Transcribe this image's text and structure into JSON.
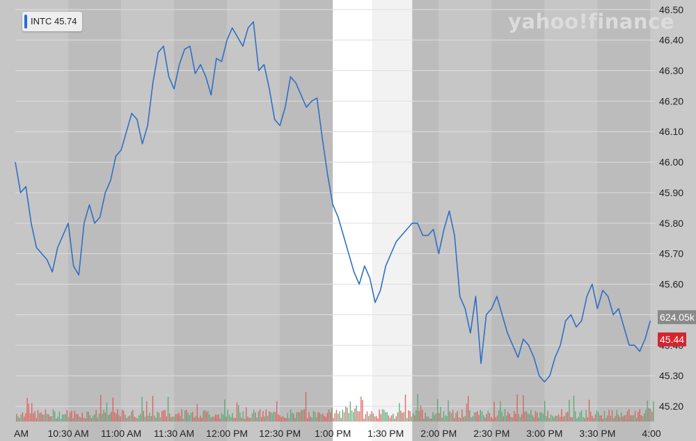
{
  "ticker": {
    "symbol": "INTC",
    "last": "45.74",
    "accent": "#1f6fd6"
  },
  "brand": "yahoo!finance",
  "tags": {
    "volume": "624.05k",
    "price": "45.44",
    "price_color": "#d4252f"
  },
  "colors": {
    "line": "#2f6fc4",
    "vol_up": "#4aa36b",
    "vol_down": "#d9534f"
  },
  "chart_data": {
    "type": "line",
    "title": "",
    "xlabel": "",
    "ylabel": "",
    "ylim": [
      45.15,
      46.52
    ],
    "y_ticks": [
      "46.50",
      "46.40",
      "46.30",
      "46.20",
      "46.10",
      "46.00",
      "45.90",
      "45.80",
      "45.70",
      "45.60",
      "45.50",
      "45.40",
      "45.30",
      "45.20"
    ],
    "y_tick_values": [
      46.5,
      46.4,
      46.3,
      46.2,
      46.1,
      46.0,
      45.9,
      45.8,
      45.7,
      45.6,
      45.5,
      45.4,
      45.3,
      45.2
    ],
    "x_ticks": [
      "AM",
      "10:30 AM",
      "11:00 AM",
      "11:30 AM",
      "12:00 PM",
      "12:30 PM",
      "1:00 PM",
      "1:30 PM",
      "2:00 PM",
      "2:30 PM",
      "3:00 PM",
      "3:30 PM",
      "4:00"
    ],
    "x_tick_values": [
      10.0,
      10.5,
      11.0,
      11.5,
      12.0,
      12.5,
      13.0,
      13.5,
      14.0,
      14.5,
      15.0,
      15.5,
      16.0
    ],
    "x_range": [
      10.0,
      16.05
    ],
    "highlight_x": [
      13.0,
      13.75
    ],
    "series": [
      {
        "x": [
          10.0,
          10.05,
          10.1,
          10.15,
          10.2,
          10.25,
          10.3,
          10.35,
          10.4,
          10.45,
          10.5,
          10.55,
          10.6,
          10.65,
          10.7,
          10.75,
          10.8,
          10.85,
          10.9,
          10.95,
          11.0,
          11.05,
          11.1,
          11.15,
          11.2,
          11.25,
          11.3,
          11.35,
          11.4,
          11.45,
          11.5,
          11.55,
          11.6,
          11.65,
          11.7,
          11.75,
          11.8,
          11.85,
          11.9,
          11.95,
          12.0,
          12.05,
          12.1,
          12.15,
          12.2,
          12.25,
          12.3,
          12.35,
          12.4,
          12.45,
          12.5,
          12.55,
          12.6,
          12.65,
          12.7,
          12.75,
          12.8,
          12.85,
          12.9,
          12.95,
          13.0,
          13.05,
          13.1,
          13.15,
          13.2,
          13.25,
          13.3,
          13.35,
          13.4,
          13.45,
          13.5,
          13.55,
          13.6,
          13.65,
          13.7,
          13.75,
          13.8,
          13.85,
          13.9,
          13.95,
          14.0,
          14.05,
          14.1,
          14.15,
          14.2,
          14.25,
          14.3,
          14.35,
          14.4,
          14.45,
          14.5,
          14.55,
          14.6,
          14.65,
          14.7,
          14.75,
          14.8,
          14.85,
          14.9,
          14.95,
          15.0,
          15.05,
          15.1,
          15.15,
          15.2,
          15.25,
          15.3,
          15.35,
          15.4,
          15.45,
          15.5,
          15.55,
          15.6,
          15.65,
          15.7,
          15.75,
          15.8,
          15.85,
          15.9,
          15.95,
          16.0
        ],
        "values": [
          46.0,
          45.9,
          45.92,
          45.8,
          45.72,
          45.7,
          45.68,
          45.64,
          45.72,
          45.76,
          45.8,
          45.66,
          45.63,
          45.8,
          45.86,
          45.8,
          45.82,
          45.9,
          45.94,
          46.02,
          46.04,
          46.1,
          46.16,
          46.14,
          46.06,
          46.12,
          46.26,
          46.36,
          46.38,
          46.28,
          46.24,
          46.32,
          46.37,
          46.38,
          46.29,
          46.32,
          46.28,
          46.22,
          46.34,
          46.33,
          46.4,
          46.44,
          46.41,
          46.38,
          46.44,
          46.46,
          46.3,
          46.32,
          46.24,
          46.14,
          46.12,
          46.18,
          46.28,
          46.26,
          46.22,
          46.18,
          46.2,
          46.21,
          46.08,
          45.96,
          45.86,
          45.82,
          45.76,
          45.7,
          45.64,
          45.6,
          45.66,
          45.62,
          45.54,
          45.58,
          45.66,
          45.7,
          45.74,
          45.76,
          45.78,
          45.8,
          45.8,
          45.76,
          45.76,
          45.78,
          45.7,
          45.78,
          45.84,
          45.76,
          45.56,
          45.52,
          45.44,
          45.56,
          45.34,
          45.5,
          45.52,
          45.56,
          45.5,
          45.44,
          45.4,
          45.36,
          45.42,
          45.4,
          45.36,
          45.3,
          45.28,
          45.3,
          45.36,
          45.4,
          45.48,
          45.5,
          45.46,
          45.48,
          45.56,
          45.6,
          45.52,
          45.58,
          45.56,
          45.5,
          45.52,
          45.46,
          45.4,
          45.4,
          45.38,
          45.42,
          45.48
        ]
      }
    ]
  }
}
